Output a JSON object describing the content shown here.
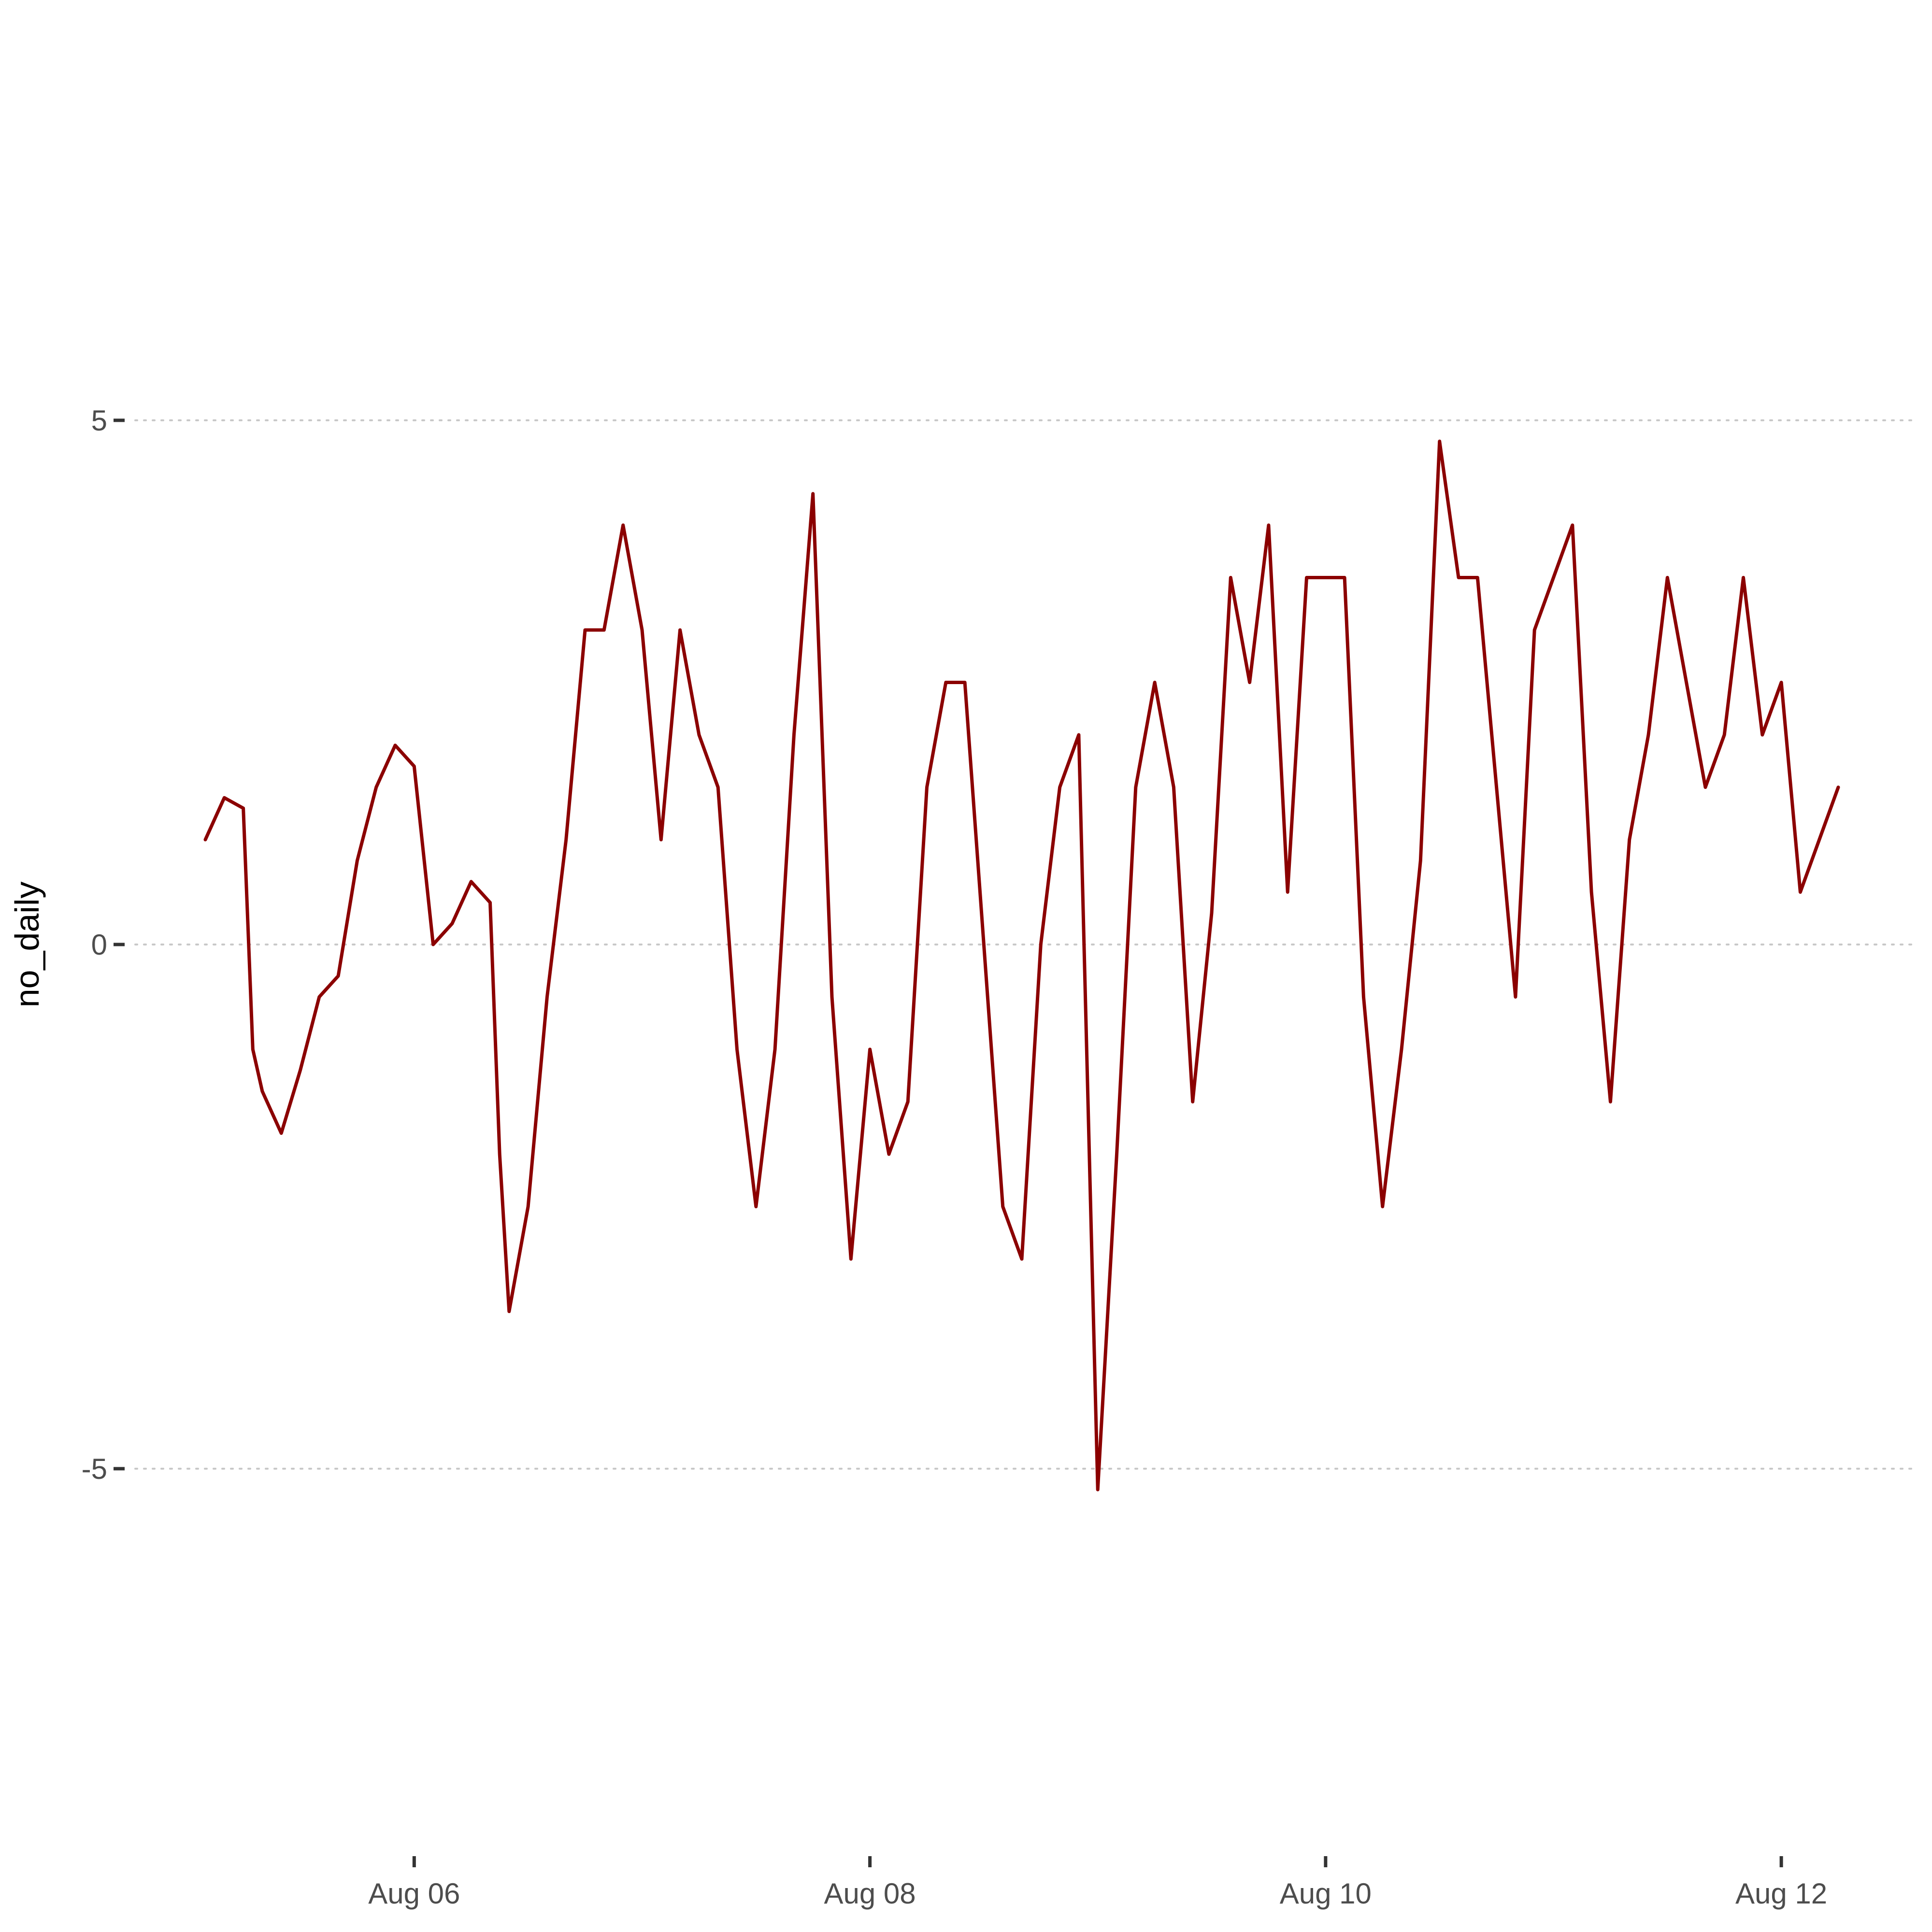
{
  "chart_data": {
    "type": "line",
    "title": "",
    "xlabel": "",
    "ylabel": "no_daily",
    "x_ticks": [
      "Aug 06",
      "Aug 08",
      "Aug 10",
      "Aug 12"
    ],
    "y_ticks": [
      "-5",
      "0",
      "5"
    ],
    "xlim": [
      "2024-08-05T02:00",
      "2024-08-12T06:00"
    ],
    "ylim": [
      -8.9,
      8.9
    ],
    "grid": "horizontal dotted major lines only",
    "legend": "none",
    "line_color": "#8B0000",
    "series": [
      {
        "x": [
          "2024-08-05T02:00",
          "2024-08-05T04:00",
          "2024-08-05T06:00",
          "2024-08-05T07:00",
          "2024-08-05T08:00",
          "2024-08-05T10:00",
          "2024-08-05T12:00",
          "2024-08-05T14:00",
          "2024-08-05T16:00",
          "2024-08-05T18:00",
          "2024-08-05T20:00",
          "2024-08-05T22:00",
          "2024-08-06T00:00",
          "2024-08-06T02:00",
          "2024-08-06T04:00",
          "2024-08-06T06:00",
          "2024-08-06T08:00",
          "2024-08-06T09:00",
          "2024-08-06T10:00",
          "2024-08-06T12:00",
          "2024-08-06T14:00",
          "2024-08-06T16:00",
          "2024-08-06T18:00",
          "2024-08-06T20:00",
          "2024-08-06T22:00",
          "2024-08-07T00:00",
          "2024-08-07T02:00",
          "2024-08-07T04:00",
          "2024-08-07T06:00",
          "2024-08-07T08:00",
          "2024-08-07T10:00",
          "2024-08-07T12:00",
          "2024-08-07T14:00",
          "2024-08-07T16:00",
          "2024-08-07T18:00",
          "2024-08-07T20:00",
          "2024-08-07T22:00",
          "2024-08-08T00:00",
          "2024-08-08T02:00",
          "2024-08-08T04:00",
          "2024-08-08T06:00",
          "2024-08-08T08:00",
          "2024-08-08T10:00",
          "2024-08-08T12:00",
          "2024-08-08T14:00",
          "2024-08-08T16:00",
          "2024-08-08T18:00",
          "2024-08-08T20:00",
          "2024-08-08T22:00",
          "2024-08-09T00:00",
          "2024-08-09T02:00",
          "2024-08-09T04:00",
          "2024-08-09T06:00",
          "2024-08-09T08:00",
          "2024-08-09T10:00",
          "2024-08-09T12:00",
          "2024-08-09T14:00",
          "2024-08-09T16:00",
          "2024-08-09T18:00",
          "2024-08-09T20:00",
          "2024-08-09T22:00",
          "2024-08-10T00:00",
          "2024-08-10T02:00",
          "2024-08-10T04:00",
          "2024-08-10T06:00",
          "2024-08-10T08:00",
          "2024-08-10T10:00",
          "2024-08-10T12:00",
          "2024-08-10T14:00",
          "2024-08-10T16:00",
          "2024-08-10T18:00",
          "2024-08-10T20:00",
          "2024-08-10T22:00",
          "2024-08-11T00:00",
          "2024-08-11T02:00",
          "2024-08-11T04:00",
          "2024-08-11T06:00",
          "2024-08-11T08:00",
          "2024-08-11T10:00",
          "2024-08-11T12:00",
          "2024-08-11T14:00",
          "2024-08-11T16:00",
          "2024-08-11T18:00",
          "2024-08-11T20:00",
          "2024-08-11T22:00",
          "2024-08-12T00:00",
          "2024-08-12T02:00",
          "2024-08-12T04:00",
          "2024-08-12T06:00"
        ],
        "values": [
          1.0,
          1.4,
          1.3,
          -1.0,
          -1.4,
          -1.8,
          -1.2,
          -0.5,
          -0.3,
          0.8,
          1.5,
          1.9,
          1.7,
          0.0,
          0.2,
          0.6,
          0.4,
          -2.0,
          -3.5,
          -2.5,
          -0.5,
          1.0,
          3.0,
          3.0,
          4.0,
          3.0,
          1.0,
          3.0,
          2.0,
          1.5,
          -1.0,
          -2.5,
          -1.0,
          2.0,
          4.3,
          -0.5,
          -3.0,
          -1.0,
          -2.0,
          -1.5,
          1.5,
          2.5,
          2.5,
          0.0,
          -2.5,
          -3.0,
          0.0,
          1.5,
          2.0,
          -5.2,
          -2.0,
          1.5,
          2.5,
          1.5,
          -1.5,
          0.3,
          3.5,
          2.5,
          4.0,
          0.5,
          3.5,
          3.5,
          3.5,
          -0.5,
          -2.5,
          -1.0,
          0.8,
          4.8,
          3.5,
          3.5,
          1.5,
          -0.5,
          3.0,
          3.5,
          4.0,
          0.5,
          -1.5,
          1.0,
          2.0,
          3.5,
          2.5,
          1.5,
          2.0,
          3.5,
          2.0,
          2.5,
          0.5,
          1.0,
          1.5
        ]
      }
    ]
  }
}
